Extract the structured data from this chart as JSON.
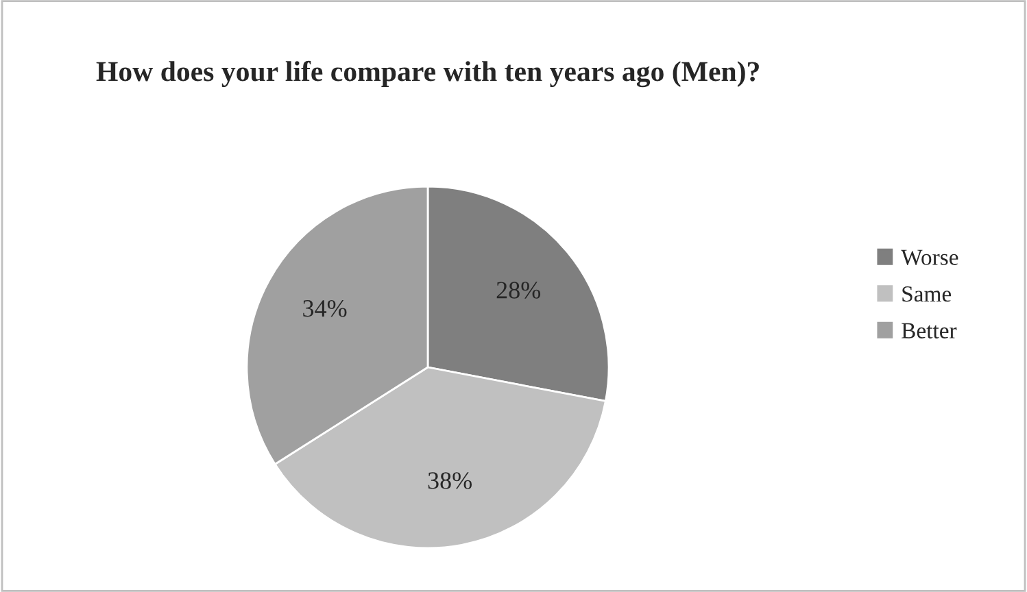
{
  "chart_data": {
    "type": "pie",
    "title": "How does your life compare with ten years ago (Men)?",
    "categories": [
      "Worse",
      "Same",
      "Better"
    ],
    "values": [
      28,
      38,
      34
    ],
    "colors": [
      "#7f7f7f",
      "#c0c0c0",
      "#a0a0a0"
    ],
    "value_labels": [
      "28%",
      "38%",
      "34%"
    ],
    "legend": "right"
  }
}
